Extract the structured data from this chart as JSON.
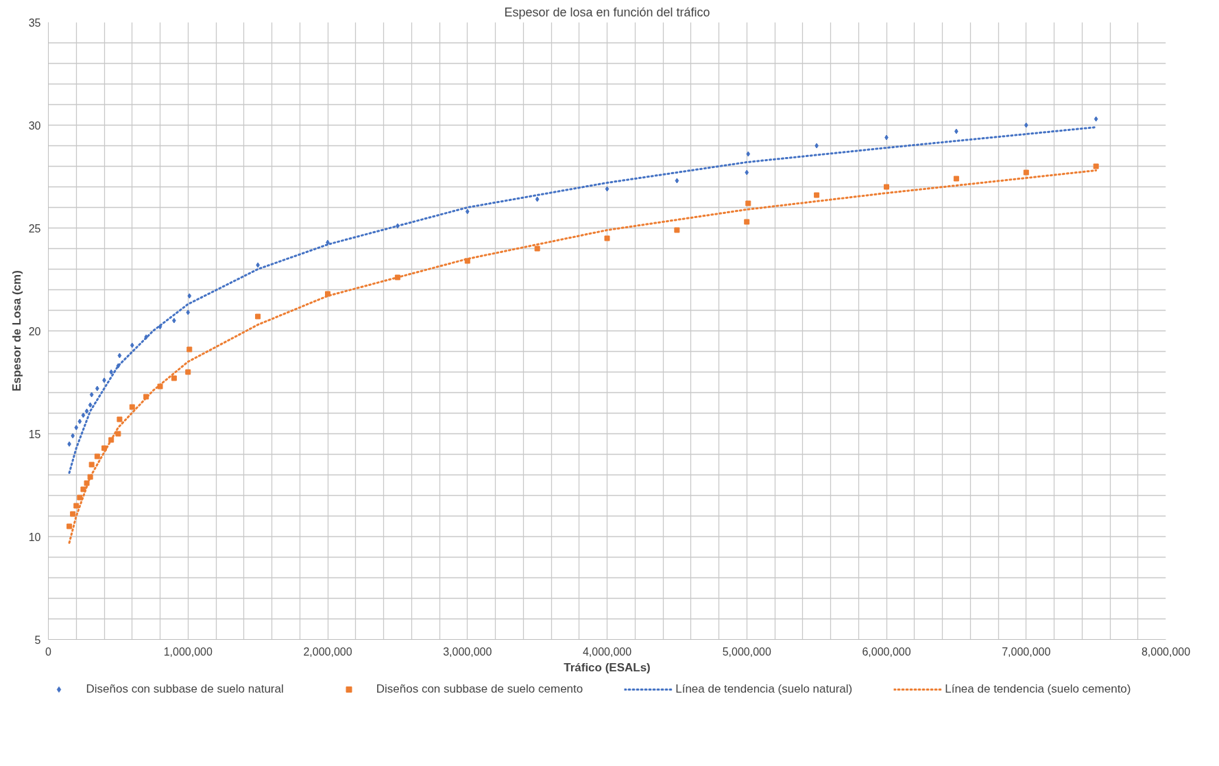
{
  "chart_data": {
    "type": "scatter",
    "title": "Espesor de losa en función del tráfico",
    "xlabel": "Tráfico (ESALs)",
    "ylabel": "Espesor de Losa (cm)",
    "xlim": [
      0,
      8000000
    ],
    "ylim": [
      5,
      35
    ],
    "xticks": [
      0,
      {
        "value": 200000,
        "label": null
      },
      {
        "value": 400000,
        "label": null
      },
      {
        "value": 600000,
        "label": null
      },
      {
        "value": 800000,
        "label": null
      },
      {
        "value": 1000000,
        "label": "1,000,000"
      },
      {
        "value": 1200000,
        "label": null
      },
      {
        "value": 1400000,
        "label": null
      },
      {
        "value": 1600000,
        "label": null
      },
      {
        "value": 1800000,
        "label": null
      },
      {
        "value": 2000000,
        "label": "2,000,000"
      },
      {
        "value": 2200000,
        "label": null
      },
      {
        "value": 2400000,
        "label": null
      },
      {
        "value": 2600000,
        "label": null
      },
      {
        "value": 2800000,
        "label": null
      },
      {
        "value": 3000000,
        "label": "3,000,000"
      },
      {
        "value": 3200000,
        "label": null
      },
      {
        "value": 3400000,
        "label": null
      },
      {
        "value": 3600000,
        "label": null
      },
      {
        "value": 3800000,
        "label": null
      },
      {
        "value": 4000000,
        "label": "4,000,000"
      },
      {
        "value": 4200000,
        "label": null
      },
      {
        "value": 4400000,
        "label": null
      },
      {
        "value": 4600000,
        "label": null
      },
      {
        "value": 4800000,
        "label": null
      },
      {
        "value": 5000000,
        "label": "5,000,000"
      },
      {
        "value": 5200000,
        "label": null
      },
      {
        "value": 5400000,
        "label": null
      },
      {
        "value": 5600000,
        "label": null
      },
      {
        "value": 5800000,
        "label": null
      },
      {
        "value": 6000000,
        "label": "6,000,000"
      },
      {
        "value": 6200000,
        "label": null
      },
      {
        "value": 6400000,
        "label": null
      },
      {
        "value": 6600000,
        "label": null
      },
      {
        "value": 6800000,
        "label": null
      },
      {
        "value": 7000000,
        "label": "7,000,000"
      },
      {
        "value": 7200000,
        "label": null
      },
      {
        "value": 7400000,
        "label": null
      },
      {
        "value": 7600000,
        "label": null
      },
      {
        "value": 7800000,
        "label": null
      },
      {
        "value": 8000000,
        "label": "8,000,000"
      }
    ],
    "yticks": [
      5,
      {
        "value": 6,
        "label": null
      },
      {
        "value": 7,
        "label": null
      },
      {
        "value": 8,
        "label": null
      },
      {
        "value": 9,
        "label": null
      },
      10,
      {
        "value": 11,
        "label": null
      },
      {
        "value": 12,
        "label": null
      },
      {
        "value": 13,
        "label": null
      },
      {
        "value": 14,
        "label": null
      },
      15,
      {
        "value": 16,
        "label": null
      },
      {
        "value": 17,
        "label": null
      },
      {
        "value": 18,
        "label": null
      },
      {
        "value": 19,
        "label": null
      },
      20,
      {
        "value": 21,
        "label": null
      },
      {
        "value": 22,
        "label": null
      },
      {
        "value": 23,
        "label": null
      },
      {
        "value": 24,
        "label": null
      },
      25,
      {
        "value": 26,
        "label": null
      },
      {
        "value": 27,
        "label": null
      },
      {
        "value": 28,
        "label": null
      },
      {
        "value": 29,
        "label": null
      },
      30,
      {
        "value": 31,
        "label": null
      },
      {
        "value": 32,
        "label": null
      },
      {
        "value": 33,
        "label": null
      },
      {
        "value": 34,
        "label": null
      },
      35
    ],
    "grid": true,
    "legend": "bottom",
    "series": [
      {
        "name": "Diseños con subbase de suelo natural",
        "type": "scatter",
        "marker": "diamond",
        "color": "#4472c4",
        "x": [
          150000,
          175000,
          200000,
          225000,
          250000,
          275000,
          300000,
          310000,
          350000,
          400000,
          450000,
          500000,
          510000,
          600000,
          700000,
          800000,
          900000,
          1000000,
          1010000,
          1500000,
          2000000,
          2500000,
          3000000,
          3500000,
          4000000,
          4500000,
          5000000,
          5010000,
          5500000,
          6000000,
          6500000,
          7000000,
          7500000
        ],
        "values": [
          14.5,
          14.9,
          15.3,
          15.6,
          15.9,
          16.1,
          16.4,
          16.9,
          17.2,
          17.6,
          18.0,
          18.3,
          18.8,
          19.3,
          19.7,
          20.2,
          20.5,
          20.9,
          21.7,
          23.2,
          24.3,
          25.1,
          25.8,
          26.4,
          26.9,
          27.3,
          27.7,
          28.6,
          29.0,
          29.4,
          29.7,
          30.0,
          30.3
        ]
      },
      {
        "name": "Diseños con subbase de suelo cemento",
        "type": "scatter",
        "marker": "square",
        "color": "#ed7d31",
        "x": [
          150000,
          175000,
          200000,
          225000,
          250000,
          275000,
          300000,
          310000,
          350000,
          400000,
          450000,
          500000,
          510000,
          600000,
          700000,
          800000,
          900000,
          1000000,
          1010000,
          1500000,
          2000000,
          2500000,
          3000000,
          3500000,
          4000000,
          4500000,
          5000000,
          5010000,
          5500000,
          6000000,
          6500000,
          7000000,
          7500000
        ],
        "values": [
          10.5,
          11.1,
          11.5,
          11.9,
          12.3,
          12.6,
          12.9,
          13.5,
          13.9,
          14.3,
          14.7,
          15.0,
          15.7,
          16.3,
          16.8,
          17.3,
          17.7,
          18.0,
          19.1,
          20.7,
          21.8,
          22.6,
          23.4,
          24.0,
          24.5,
          24.9,
          25.3,
          26.2,
          26.6,
          27.0,
          27.4,
          27.7,
          28.0
        ]
      },
      {
        "name": "Línea de tendencia (suelo natural)",
        "type": "line",
        "line_style": "dotted",
        "color": "#4472c4",
        "x": [
          150000,
          200000,
          300000,
          500000,
          750000,
          1000000,
          1500000,
          2000000,
          3000000,
          4000000,
          5000000,
          6000000,
          7500000
        ],
        "values": [
          13.1,
          14.3,
          16.1,
          18.3,
          20.0,
          21.3,
          23.0,
          24.2,
          26.0,
          27.2,
          28.2,
          28.9,
          29.9
        ]
      },
      {
        "name": "Línea de tendencia (suelo cemento)",
        "type": "line",
        "line_style": "dotted",
        "color": "#ed7d31",
        "x": [
          150000,
          200000,
          300000,
          500000,
          750000,
          1000000,
          1500000,
          2000000,
          3000000,
          4000000,
          5000000,
          6000000,
          7500000
        ],
        "values": [
          9.7,
          11.0,
          12.9,
          15.3,
          17.1,
          18.5,
          20.3,
          21.7,
          23.5,
          24.9,
          25.9,
          26.7,
          27.8
        ]
      }
    ]
  }
}
